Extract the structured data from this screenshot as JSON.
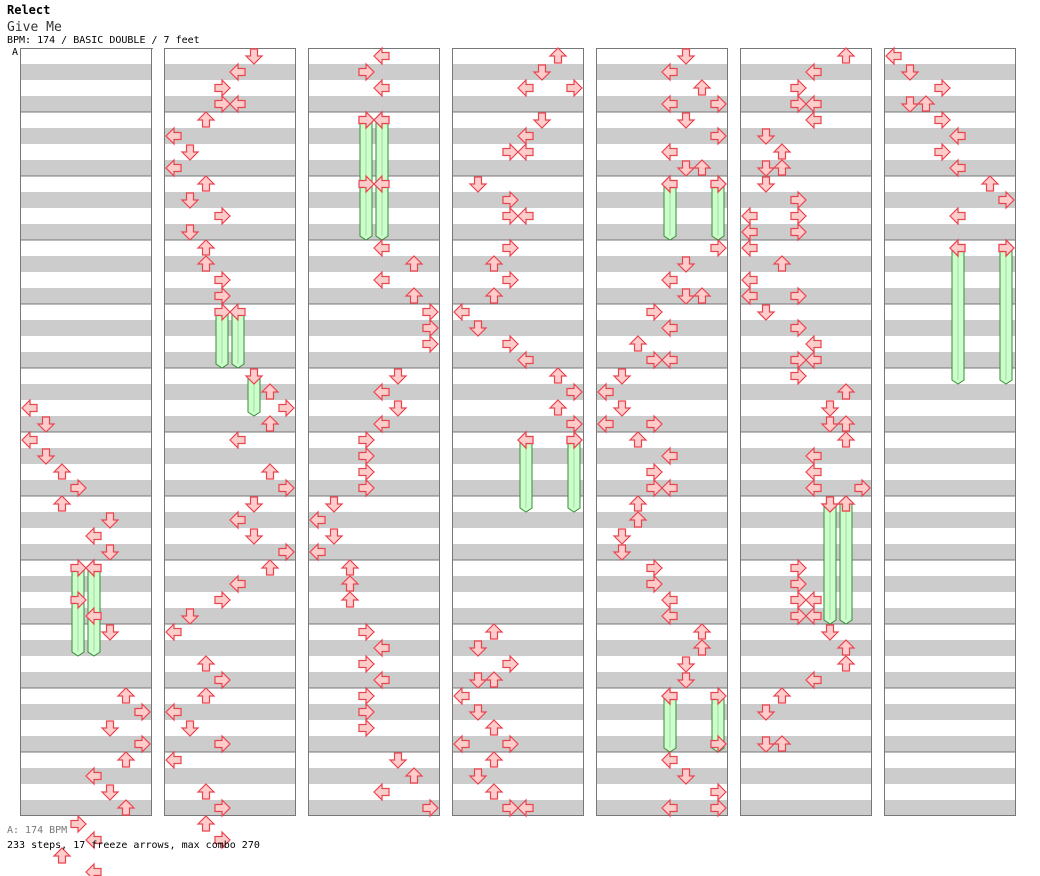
{
  "header": {
    "artist": "Relect",
    "song_title": "Give Me",
    "info": "BPM: 174 / BASIC DOUBLE / 7 feet",
    "marker": "A"
  },
  "footer": {
    "bpm_note": "A: 174 BPM",
    "stats": "233 steps, 17 freeze arrows, max combo 270"
  },
  "chart_data": {
    "type": "step-chart",
    "mode": "BASIC DOUBLE",
    "bpm": 174,
    "difficulty_feet": 7,
    "columns_count": 7,
    "measures_per_column": 12,
    "lanes": [
      "P1-left",
      "P1-down",
      "P1-up",
      "P1-right",
      "P2-left",
      "P2-down",
      "P2-up",
      "P2-right"
    ],
    "colors": {
      "arrow_fill": "#ffcccc",
      "arrow_stroke": "#e8454f",
      "freeze_fill": "#ccffcc",
      "freeze_stroke": "#3a8a3a",
      "stripe": "#cccccc"
    },
    "columns": [
      {
        "notes": [
          [
            5.5,
            0
          ],
          [
            5.75,
            1
          ],
          [
            6,
            0
          ],
          [
            6.25,
            1
          ],
          [
            6.5,
            2
          ],
          [
            6.75,
            3
          ],
          [
            7,
            2
          ],
          [
            7.25,
            5
          ],
          [
            7.5,
            4
          ],
          [
            7.75,
            5
          ],
          [
            8,
            4
          ],
          [
            8.5,
            3
          ],
          [
            8.75,
            4
          ],
          [
            9,
            5
          ],
          [
            10,
            6
          ],
          [
            10.25,
            7
          ],
          [
            10.5,
            5
          ],
          [
            10.75,
            7
          ],
          [
            11,
            6
          ],
          [
            11.25,
            4
          ],
          [
            11.5,
            5
          ],
          [
            11.75,
            6
          ],
          [
            12,
            3
          ],
          [
            12.25,
            4
          ],
          [
            12.5,
            2
          ],
          [
            12.75,
            4
          ]
        ],
        "freezes": [
          [
            8,
            3,
            9.5
          ],
          [
            8,
            4,
            9.5
          ]
        ]
      },
      {
        "notes": [
          [
            0,
            5
          ],
          [
            0.25,
            4
          ],
          [
            0.5,
            3
          ],
          [
            0.75,
            3
          ],
          [
            0.75,
            4
          ],
          [
            1,
            2
          ],
          [
            1.25,
            0
          ],
          [
            1.5,
            1
          ],
          [
            1.75,
            0
          ],
          [
            2,
            2
          ],
          [
            2.25,
            1
          ],
          [
            2.5,
            3
          ],
          [
            2.75,
            1
          ],
          [
            3,
            2
          ],
          [
            3.25,
            2
          ],
          [
            3.5,
            3
          ],
          [
            3.75,
            3
          ],
          [
            5.25,
            6
          ],
          [
            5.5,
            7
          ],
          [
            5.75,
            6
          ],
          [
            6,
            4
          ],
          [
            6.5,
            6
          ],
          [
            6.75,
            7
          ],
          [
            7,
            5
          ],
          [
            7.25,
            4
          ],
          [
            7.5,
            5
          ],
          [
            7.75,
            7
          ],
          [
            8,
            6
          ],
          [
            8.25,
            4
          ],
          [
            8.5,
            3
          ],
          [
            8.75,
            1
          ],
          [
            9,
            0
          ],
          [
            9.5,
            2
          ],
          [
            9.75,
            3
          ],
          [
            10,
            2
          ],
          [
            10.25,
            0
          ],
          [
            10.5,
            1
          ],
          [
            10.75,
            3
          ],
          [
            11,
            0
          ],
          [
            11.5,
            2
          ],
          [
            11.75,
            3
          ],
          [
            12,
            2
          ],
          [
            12.25,
            3
          ]
        ],
        "freezes": [
          [
            4,
            3,
            5
          ],
          [
            4,
            4,
            5
          ],
          [
            5,
            5,
            5.75
          ]
        ]
      },
      {
        "notes": [
          [
            0,
            4
          ],
          [
            0.25,
            3
          ],
          [
            0.5,
            4
          ],
          [
            1,
            3
          ],
          [
            1,
            4
          ],
          [
            2,
            3
          ],
          [
            2,
            4
          ],
          [
            3,
            4
          ],
          [
            3.25,
            6
          ],
          [
            3.5,
            4
          ],
          [
            3.75,
            6
          ],
          [
            4,
            7
          ],
          [
            4.25,
            7
          ],
          [
            4.5,
            7
          ],
          [
            5,
            5
          ],
          [
            5.25,
            4
          ],
          [
            5.5,
            5
          ],
          [
            5.75,
            4
          ],
          [
            6,
            3
          ],
          [
            6.25,
            3
          ],
          [
            6.5,
            3
          ],
          [
            6.75,
            3
          ],
          [
            7,
            1
          ],
          [
            7.25,
            0
          ],
          [
            7.5,
            1
          ],
          [
            7.75,
            0
          ],
          [
            8,
            2
          ],
          [
            8.25,
            2
          ],
          [
            8.5,
            2
          ],
          [
            9,
            3
          ],
          [
            9.25,
            4
          ],
          [
            9.5,
            3
          ],
          [
            9.75,
            4
          ],
          [
            10,
            3
          ],
          [
            10.25,
            3
          ],
          [
            10.5,
            3
          ],
          [
            11,
            5
          ],
          [
            11.25,
            6
          ],
          [
            11.5,
            4
          ],
          [
            11.75,
            7
          ]
        ],
        "freezes": [
          [
            1,
            3,
            3
          ],
          [
            1,
            4,
            3
          ]
        ]
      },
      {
        "notes": [
          [
            0,
            6
          ],
          [
            0.25,
            5
          ],
          [
            0.5,
            4
          ],
          [
            0.5,
            7
          ],
          [
            1,
            5
          ],
          [
            1.25,
            4
          ],
          [
            1.5,
            3
          ],
          [
            1.5,
            4
          ],
          [
            2,
            1
          ],
          [
            2.25,
            3
          ],
          [
            2.5,
            3
          ],
          [
            2.5,
            4
          ],
          [
            3,
            3
          ],
          [
            3.25,
            2
          ],
          [
            3.5,
            3
          ],
          [
            3.75,
            2
          ],
          [
            4,
            0
          ],
          [
            4.25,
            1
          ],
          [
            4.5,
            3
          ],
          [
            4.75,
            4
          ],
          [
            5,
            6
          ],
          [
            5.25,
            7
          ],
          [
            5.5,
            6
          ],
          [
            5.75,
            7
          ],
          [
            6,
            7
          ],
          [
            6,
            4
          ],
          [
            9,
            2
          ],
          [
            9.25,
            1
          ],
          [
            9.5,
            3
          ],
          [
            9.75,
            1
          ],
          [
            9.75,
            2
          ],
          [
            10,
            0
          ],
          [
            10.25,
            1
          ],
          [
            10.5,
            2
          ],
          [
            10.75,
            0
          ],
          [
            10.75,
            3
          ],
          [
            11,
            2
          ],
          [
            11.25,
            1
          ],
          [
            11.5,
            2
          ],
          [
            11.75,
            3
          ],
          [
            11.75,
            4
          ]
        ],
        "freezes": [
          [
            6,
            4,
            7.25
          ],
          [
            6,
            7,
            7.25
          ]
        ]
      },
      {
        "notes": [
          [
            0,
            5
          ],
          [
            0.25,
            4
          ],
          [
            0.5,
            6
          ],
          [
            0.75,
            4
          ],
          [
            0.75,
            7
          ],
          [
            1,
            5
          ],
          [
            1.25,
            7
          ],
          [
            1.5,
            4
          ],
          [
            1.75,
            5
          ],
          [
            1.75,
            6
          ],
          [
            2,
            4
          ],
          [
            2,
            7
          ],
          [
            3,
            7
          ],
          [
            3.25,
            5
          ],
          [
            3.5,
            4
          ],
          [
            3.75,
            5
          ],
          [
            3.75,
            6
          ],
          [
            4,
            3
          ],
          [
            4.25,
            4
          ],
          [
            4.5,
            2
          ],
          [
            4.75,
            3
          ],
          [
            4.75,
            4
          ],
          [
            5,
            1
          ],
          [
            5.25,
            0
          ],
          [
            5.5,
            1
          ],
          [
            5.75,
            0
          ],
          [
            5.75,
            3
          ],
          [
            6,
            2
          ],
          [
            6.25,
            4
          ],
          [
            6.5,
            3
          ],
          [
            6.75,
            3
          ],
          [
            6.75,
            4
          ],
          [
            7,
            2
          ],
          [
            7.25,
            2
          ],
          [
            7.5,
            1
          ],
          [
            7.75,
            1
          ],
          [
            8,
            3
          ],
          [
            8.25,
            3
          ],
          [
            8.5,
            4
          ],
          [
            8.75,
            4
          ],
          [
            9,
            6
          ],
          [
            9.25,
            6
          ],
          [
            9.5,
            5
          ],
          [
            9.75,
            5
          ],
          [
            10,
            4
          ],
          [
            10.75,
            7
          ],
          [
            11,
            4
          ],
          [
            11.25,
            5
          ],
          [
            11.5,
            7
          ],
          [
            11.75,
            4
          ],
          [
            11.75,
            7
          ]
        ],
        "freezes": [
          [
            2,
            4,
            3
          ],
          [
            2,
            7,
            3
          ],
          [
            10,
            4,
            11
          ],
          [
            10,
            7,
            11
          ]
        ]
      },
      {
        "notes": [
          [
            0,
            6
          ],
          [
            0.25,
            4
          ],
          [
            0.5,
            3
          ],
          [
            0.75,
            3
          ],
          [
            0.75,
            4
          ],
          [
            1,
            4
          ],
          [
            1.25,
            1
          ],
          [
            1.5,
            2
          ],
          [
            1.75,
            1
          ],
          [
            1.75,
            2
          ],
          [
            2,
            1
          ],
          [
            2.25,
            3
          ],
          [
            2.5,
            0
          ],
          [
            2.5,
            3
          ],
          [
            2.75,
            0
          ],
          [
            2.75,
            3
          ],
          [
            3,
            0
          ],
          [
            3.25,
            2
          ],
          [
            3.5,
            0
          ],
          [
            3.75,
            0
          ],
          [
            3.75,
            3
          ],
          [
            4,
            1
          ],
          [
            4.25,
            3
          ],
          [
            4.5,
            4
          ],
          [
            4.75,
            3
          ],
          [
            4.75,
            4
          ],
          [
            5,
            3
          ],
          [
            5.25,
            6
          ],
          [
            5.5,
            5
          ],
          [
            5.75,
            5
          ],
          [
            5.75,
            6
          ],
          [
            6,
            6
          ],
          [
            6.25,
            4
          ],
          [
            6.5,
            4
          ],
          [
            6.75,
            4
          ],
          [
            6.75,
            7
          ],
          [
            7,
            5
          ],
          [
            7,
            6
          ],
          [
            8,
            3
          ],
          [
            8.25,
            3
          ],
          [
            8.5,
            3
          ],
          [
            8.5,
            4
          ],
          [
            8.75,
            3
          ],
          [
            8.75,
            4
          ],
          [
            9,
            5
          ],
          [
            9.25,
            6
          ],
          [
            9.5,
            6
          ],
          [
            9.75,
            4
          ],
          [
            10,
            2
          ],
          [
            10.25,
            1
          ],
          [
            10.75,
            1
          ],
          [
            10.75,
            2
          ]
        ],
        "freezes": [
          [
            7,
            5,
            9
          ],
          [
            7,
            6,
            9
          ]
        ]
      },
      {
        "notes": [
          [
            0,
            0
          ],
          [
            0.25,
            1
          ],
          [
            0.5,
            3
          ],
          [
            0.75,
            1
          ],
          [
            0.75,
            2
          ],
          [
            1,
            3
          ],
          [
            1.25,
            4
          ],
          [
            1.5,
            3
          ],
          [
            1.75,
            4
          ],
          [
            2,
            6
          ],
          [
            2.25,
            7
          ],
          [
            2.5,
            4
          ],
          [
            3,
            4
          ],
          [
            3,
            7
          ]
        ],
        "freezes": [
          [
            3,
            4,
            5.25
          ],
          [
            3,
            7,
            5.25
          ]
        ]
      }
    ]
  }
}
